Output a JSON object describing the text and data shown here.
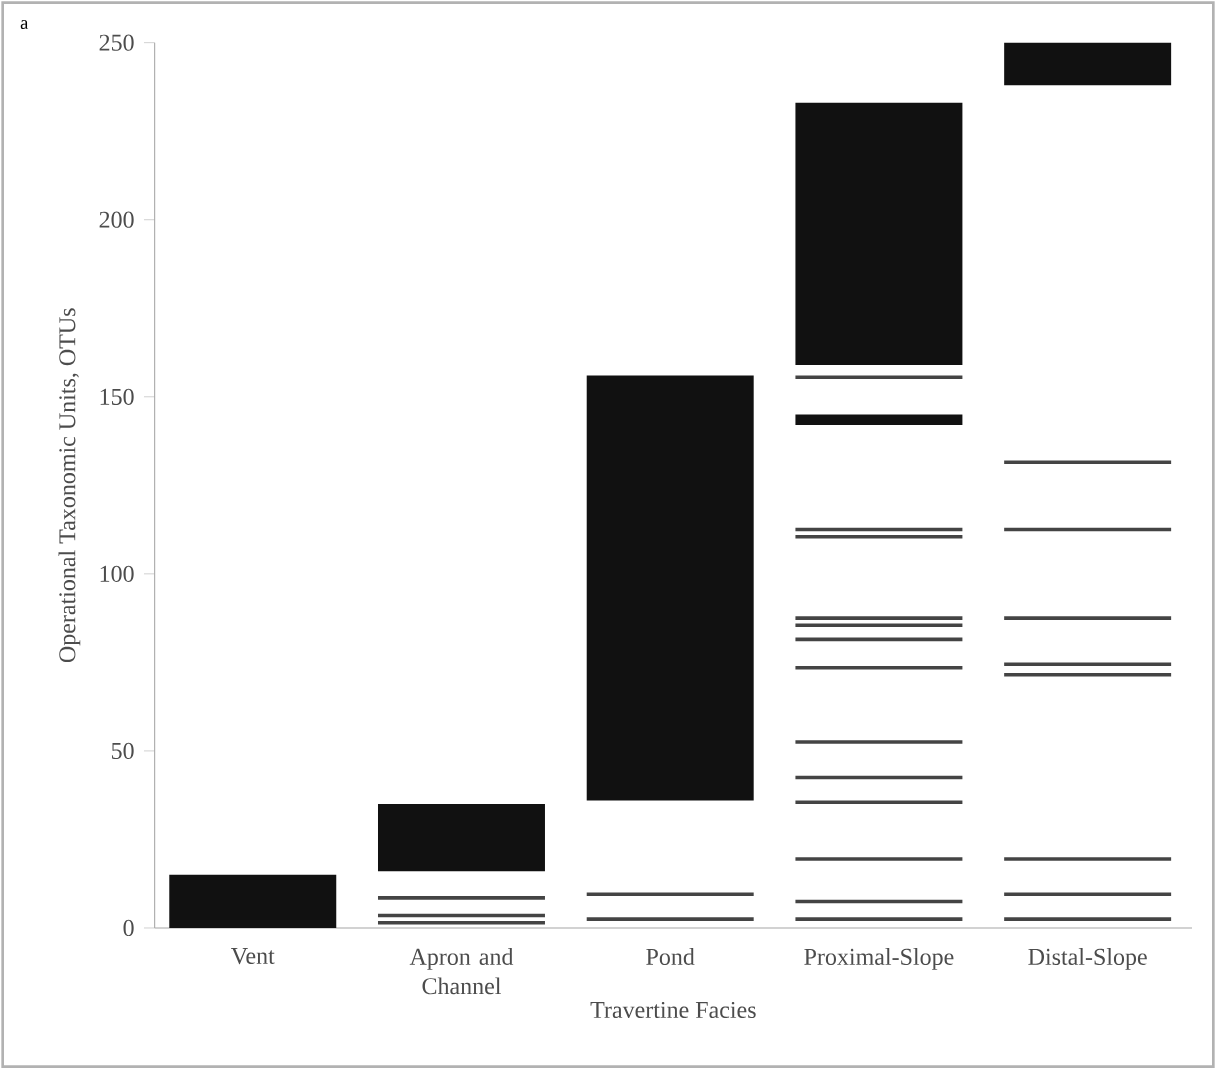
{
  "chart_data": {
    "type": "bar",
    "xlabel": "Travertine Facies",
    "ylabel": "Operational Taxonomic Units, OTUs",
    "annotations": [
      "a"
    ],
    "categories": [
      "Vent",
      "Apron and Channel",
      "Pond",
      "Proximal-Slope",
      "Distal-Slope"
    ],
    "ylim": [
      0,
      250
    ],
    "yticks": [
      0,
      50,
      100,
      150,
      200,
      250
    ],
    "grid": false,
    "series": [
      {
        "color": "#111111",
        "base": [
          0,
          16,
          36,
          159,
          238
        ],
        "values": [
          15,
          19,
          120,
          74,
          12
        ]
      },
      {
        "color": "#444444",
        "base": [
          null,
          1,
          2,
          2,
          2
        ],
        "values": [
          null,
          1,
          1,
          1,
          1
        ]
      },
      {
        "color": "#444444",
        "base": [
          null,
          3,
          9,
          7,
          9
        ],
        "values": [
          null,
          1,
          1,
          1,
          1
        ]
      },
      {
        "color": "#444444",
        "base": [
          null,
          8,
          null,
          19,
          19
        ],
        "values": [
          null,
          1,
          null,
          1,
          1
        ]
      },
      {
        "color": "#444444",
        "base": [
          null,
          null,
          null,
          35,
          71
        ],
        "values": [
          null,
          null,
          null,
          1,
          1
        ]
      },
      {
        "color": "#444444",
        "base": [
          null,
          null,
          null,
          42,
          74
        ],
        "values": [
          null,
          null,
          null,
          1,
          1
        ]
      },
      {
        "color": "#444444",
        "base": [
          null,
          null,
          null,
          52,
          87
        ],
        "values": [
          null,
          null,
          null,
          1,
          1
        ]
      },
      {
        "color": "#444444",
        "base": [
          null,
          null,
          null,
          73,
          112
        ],
        "values": [
          null,
          null,
          null,
          1,
          1
        ]
      },
      {
        "color": "#444444",
        "base": [
          null,
          null,
          null,
          81,
          131
        ],
        "values": [
          null,
          null,
          null,
          1,
          1
        ]
      },
      {
        "color": "#444444",
        "base": [
          null,
          null,
          null,
          85,
          null
        ],
        "values": [
          null,
          null,
          null,
          1,
          null
        ]
      },
      {
        "color": "#444444",
        "base": [
          null,
          null,
          null,
          87,
          null
        ],
        "values": [
          null,
          null,
          null,
          1,
          null
        ]
      },
      {
        "color": "#444444",
        "base": [
          null,
          null,
          null,
          110,
          null
        ],
        "values": [
          null,
          null,
          null,
          1,
          null
        ]
      },
      {
        "color": "#444444",
        "base": [
          null,
          null,
          null,
          112,
          null
        ],
        "values": [
          null,
          null,
          null,
          1,
          null
        ]
      },
      {
        "color": "#111111",
        "base": [
          null,
          null,
          null,
          142,
          null
        ],
        "values": [
          null,
          null,
          null,
          3,
          null
        ]
      },
      {
        "color": "#444444",
        "base": [
          null,
          null,
          null,
          155,
          null
        ],
        "values": [
          null,
          null,
          null,
          1,
          null
        ]
      }
    ]
  }
}
